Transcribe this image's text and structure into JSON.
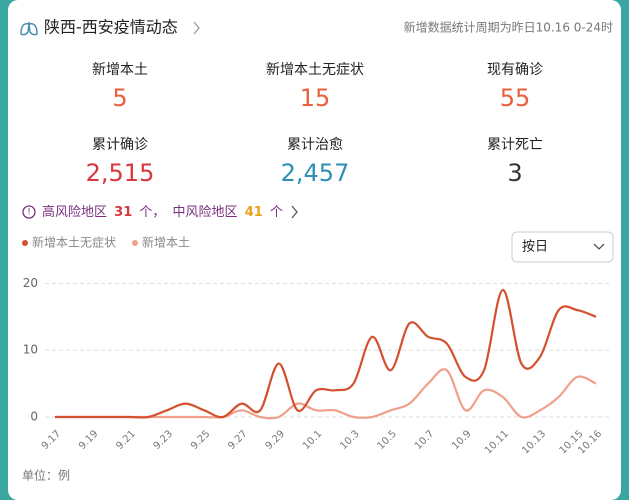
{
  "header": {
    "title": "陕西-西安疫情动态",
    "note": "新增数据统计周期为昨日10.16 0-24时"
  },
  "stats": [
    {
      "label": "新增本土",
      "value": "5",
      "color": "#e8603c"
    },
    {
      "label": "新增本土无症状",
      "value": "15",
      "color": "#e8603c"
    },
    {
      "label": "现有确诊",
      "value": "55",
      "color": "#e8603c"
    },
    {
      "label": "累计确诊",
      "value": "2,515",
      "color": "#d9363e"
    },
    {
      "label": "累计治愈",
      "value": "2,457",
      "color": "#2f8fb5"
    },
    {
      "label": "累计死亡",
      "value": "3",
      "color": "#333333"
    }
  ],
  "risk": {
    "high_label": "高风险地区",
    "high_count": 31,
    "separator": "个，",
    "mid_label": "中风险地区",
    "mid_count": 41,
    "unit": "个"
  },
  "toggle": "按日",
  "unit_note": "单位：例",
  "chart_data": {
    "type": "line",
    "categories": [
      "9.17",
      null,
      "9.19",
      null,
      "9.21",
      null,
      "9.23",
      null,
      "9.25",
      null,
      "9.27",
      null,
      "9.29",
      null,
      "10.1",
      null,
      "10.3",
      null,
      "10.5",
      null,
      "10.7",
      null,
      "10.9",
      null,
      "10.11",
      null,
      "10.13",
      null,
      "10.15",
      "10.16"
    ],
    "series": [
      {
        "name": "新增本土无症状",
        "color": "#d4502f",
        "values": [
          0,
          0,
          0,
          0,
          0,
          0,
          1,
          2,
          1,
          0,
          2,
          1,
          8,
          1,
          4,
          4,
          5,
          12,
          7,
          14,
          12,
          11,
          6,
          7,
          19,
          8,
          9,
          16,
          16,
          15
        ]
      },
      {
        "name": "新增本土",
        "color": "#f0a08a",
        "values": [
          0,
          0,
          0,
          0,
          0,
          0,
          0,
          0,
          0,
          0,
          1,
          0,
          0,
          2,
          1,
          1,
          0,
          0,
          1,
          2,
          5,
          7,
          1,
          4,
          3,
          0,
          1,
          3,
          6,
          5
        ]
      }
    ],
    "ylim": [
      0,
      22
    ],
    "yticks": [
      0,
      10,
      20
    ],
    "grid": true
  }
}
